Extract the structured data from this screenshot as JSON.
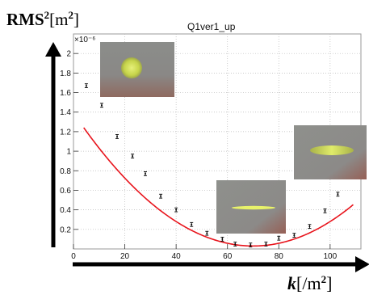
{
  "chart_data": {
    "type": "scatter",
    "title": "Q1ver1_up",
    "ylabel": "RMS²[m²]",
    "ylabel_main": "RMS",
    "ylabel_sup": "2",
    "ylabel_unit_open": "[m",
    "ylabel_unit_sup": "2",
    "ylabel_unit_close": "]",
    "xlabel_var": "k",
    "xlabel_unit_open": "[/m",
    "xlabel_unit_sup": "2",
    "xlabel_unit_close": "]",
    "y_multiplier": "×10⁻⁶",
    "xlim": [
      0,
      112
    ],
    "ylim": [
      0,
      2.2
    ],
    "x_ticks": [
      0,
      20,
      40,
      60,
      80,
      100
    ],
    "y_ticks": [
      0.2,
      0.4,
      0.6,
      0.8,
      1,
      1.2,
      1.4,
      1.6,
      1.8,
      2
    ],
    "grid": true,
    "series": [
      {
        "kind": "points_with_error_bars",
        "x": [
          5,
          11,
          17,
          23,
          28,
          34,
          40,
          46,
          52,
          58,
          63,
          69,
          75,
          80,
          86,
          92,
          98,
          103
        ],
        "y": [
          1.67,
          1.47,
          1.15,
          0.95,
          0.77,
          0.54,
          0.4,
          0.25,
          0.16,
          0.1,
          0.05,
          0.04,
          0.05,
          0.11,
          0.14,
          0.23,
          0.39,
          0.56
        ],
        "yerr": 0.02,
        "color": "#000000"
      },
      {
        "kind": "fit_curve",
        "color": "#e8141c",
        "function": "parabola",
        "vertex_x": 70,
        "vertex_y": 0.03,
        "curvature": 0.000278,
        "x_from": 4,
        "x_to": 109
      }
    ],
    "inset_images": [
      {
        "name": "beam-spot-round",
        "description_key": "round"
      },
      {
        "name": "beam-spot-elongated",
        "description_key": "elongated"
      },
      {
        "name": "beam-spot-line",
        "description_key": "line"
      }
    ]
  }
}
